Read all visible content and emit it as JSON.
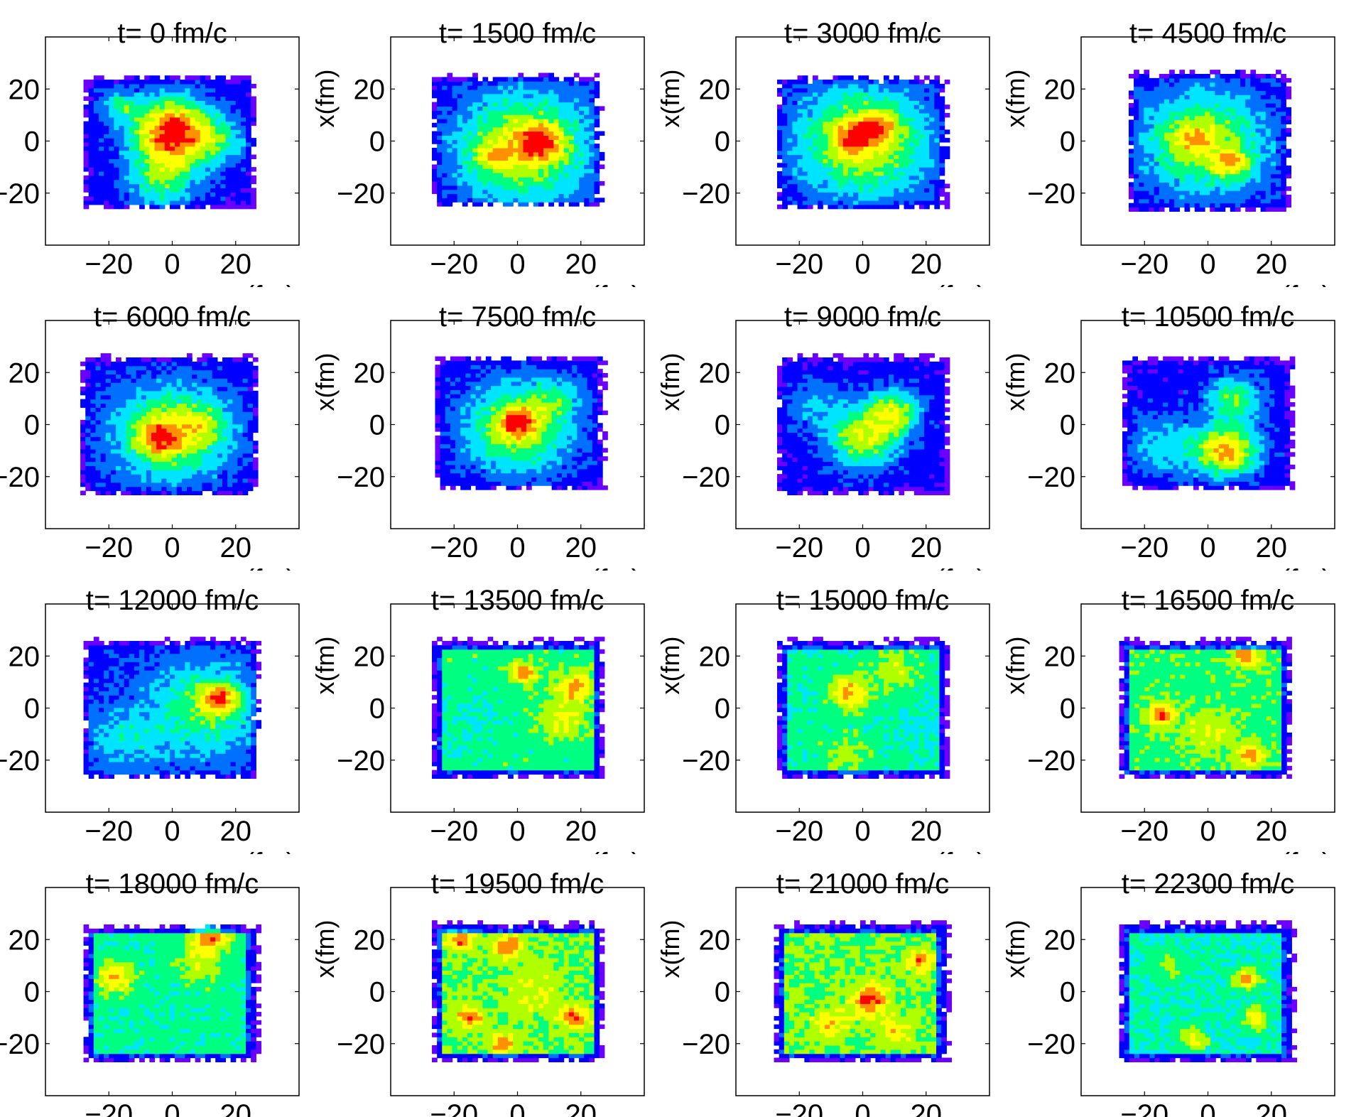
{
  "chart_data": {
    "type": "heatmap",
    "layout": {
      "rows": 4,
      "cols": 4
    },
    "xlabel": "z(fm)",
    "ylabel": "x(fm)",
    "xlim": [
      -40,
      40
    ],
    "ylim": [
      -40,
      40
    ],
    "xticks": [
      -20,
      0,
      20
    ],
    "yticks": [
      20,
      0,
      -20
    ],
    "tick_labels": {
      "x": [
        "−20",
        "0",
        "20"
      ],
      "y": [
        "20",
        "0",
        "−20"
      ]
    },
    "grid": false,
    "colormap": [
      "#6a00ff",
      "#0000ff",
      "#0070ff",
      "#00e5ff",
      "#00ff80",
      "#b0ff00",
      "#ffff00",
      "#ff9000",
      "#ff0000"
    ],
    "panels": [
      {
        "title": "t= 0 fm/c",
        "extent": {
          "x": [
            -28,
            26
          ],
          "y": [
            -26,
            25
          ]
        },
        "base": 0.15,
        "blobs": [
          [
            0,
            4,
            9,
            0.8
          ],
          [
            -3,
            -15,
            8,
            0.35
          ],
          [
            -17,
            14,
            4,
            0.3
          ],
          [
            15,
            0,
            6,
            0.25
          ]
        ]
      },
      {
        "title": "t= 1500 fm/c",
        "extent": {
          "x": [
            -27,
            26
          ],
          "y": [
            -25,
            25
          ]
        },
        "base": 0.15,
        "blobs": [
          [
            2,
            -2,
            15,
            0.55
          ],
          [
            7,
            0,
            5,
            0.35
          ],
          [
            -8,
            -6,
            4,
            0.2
          ]
        ]
      },
      {
        "title": "t= 3000 fm/c",
        "extent": {
          "x": [
            -27,
            26
          ],
          "y": [
            -26,
            24
          ]
        },
        "base": 0.15,
        "blobs": [
          [
            0,
            0,
            15,
            0.55
          ],
          [
            -3,
            2,
            4,
            0.3
          ],
          [
            5,
            6,
            4,
            0.3
          ]
        ]
      },
      {
        "title": "t= 4500 fm/c",
        "extent": {
          "x": [
            -25,
            26
          ],
          "y": [
            -27,
            26
          ]
        },
        "base": 0.15,
        "blobs": [
          [
            -1,
            0,
            14,
            0.5
          ],
          [
            8,
            -9,
            4,
            0.35
          ],
          [
            -5,
            1,
            4,
            0.2
          ]
        ]
      },
      {
        "title": "t= 6000 fm/c",
        "extent": {
          "x": [
            -29,
            27
          ],
          "y": [
            -27,
            26
          ]
        },
        "base": 0.15,
        "blobs": [
          [
            0,
            -3,
            13,
            0.5
          ],
          [
            -4,
            -5,
            5,
            0.35
          ],
          [
            10,
            0,
            5,
            0.2
          ]
        ]
      },
      {
        "title": "t= 7500 fm/c",
        "extent": {
          "x": [
            -26,
            27
          ],
          "y": [
            -25,
            26
          ]
        },
        "base": 0.15,
        "blobs": [
          [
            0,
            -1,
            12,
            0.5
          ],
          [
            0,
            1,
            4,
            0.35
          ],
          [
            12,
            10,
            6,
            0.2
          ]
        ]
      },
      {
        "title": "t= 9000 fm/c",
        "extent": {
          "x": [
            -27,
            27
          ],
          "y": [
            -27,
            26
          ]
        },
        "base": 0.15,
        "blobs": [
          [
            0,
            -5,
            8,
            0.5
          ],
          [
            10,
            5,
            6,
            0.45
          ],
          [
            -15,
            8,
            6,
            0.2
          ]
        ]
      },
      {
        "title": "t= 10500 fm/c",
        "extent": {
          "x": [
            -27,
            27
          ],
          "y": [
            -25,
            26
          ]
        },
        "base": 0.15,
        "blobs": [
          [
            6,
            -10,
            7,
            0.65
          ],
          [
            8,
            10,
            6,
            0.4
          ],
          [
            -14,
            -8,
            8,
            0.25
          ]
        ]
      },
      {
        "title": "t= 12000 fm/c",
        "extent": {
          "x": [
            -28,
            27
          ],
          "y": [
            -27,
            26
          ]
        },
        "base": 0.2,
        "blobs": [
          [
            10,
            0,
            12,
            0.35
          ],
          [
            15,
            4,
            4,
            0.45
          ],
          [
            -15,
            -12,
            8,
            0.2
          ]
        ]
      },
      {
        "title": "t= 13500 fm/c",
        "extent": {
          "x": [
            -27,
            27
          ],
          "y": [
            -27,
            26
          ]
        },
        "base": 0.5,
        "blobs": [
          [
            2,
            14,
            3,
            0.35
          ],
          [
            18,
            8,
            4,
            0.35
          ],
          [
            14,
            -4,
            5,
            0.2
          ],
          [
            -15,
            -5,
            7,
            -0.08
          ]
        ]
      },
      {
        "title": "t= 15000 fm/c",
        "extent": {
          "x": [
            -27,
            27
          ],
          "y": [
            -27,
            26
          ]
        },
        "base": 0.48,
        "blobs": [
          [
            -4,
            6,
            4,
            0.35
          ],
          [
            10,
            15,
            5,
            0.15
          ],
          [
            -5,
            -18,
            5,
            0.15
          ],
          [
            20,
            -8,
            6,
            -0.08
          ]
        ]
      },
      {
        "title": "t= 16500 fm/c",
        "extent": {
          "x": [
            -28,
            26
          ],
          "y": [
            -27,
            26
          ]
        },
        "base": 0.52,
        "blobs": [
          [
            -15,
            -2,
            3,
            0.4
          ],
          [
            12,
            20,
            3,
            0.35
          ],
          [
            13,
            -18,
            3,
            0.35
          ],
          [
            0,
            -8,
            6,
            0.15
          ]
        ]
      },
      {
        "title": "t= 18000 fm/c",
        "extent": {
          "x": [
            -28,
            27
          ],
          "y": [
            -27,
            25
          ]
        },
        "base": 0.48,
        "blobs": [
          [
            12,
            21,
            4,
            0.4
          ],
          [
            -18,
            5,
            4,
            0.3
          ],
          [
            8,
            10,
            5,
            0.15
          ]
        ]
      },
      {
        "title": "t= 19500 fm/c",
        "extent": {
          "x": [
            -27,
            27
          ],
          "y": [
            -27,
            26
          ]
        },
        "base": 0.55,
        "blobs": [
          [
            -18,
            20,
            3,
            0.35
          ],
          [
            -3,
            18,
            3,
            0.35
          ],
          [
            -15,
            -10,
            3,
            0.35
          ],
          [
            18,
            -10,
            3,
            0.35
          ],
          [
            -5,
            -20,
            3,
            0.3
          ],
          [
            5,
            0,
            8,
            0.1
          ]
        ]
      },
      {
        "title": "t= 21000 fm/c",
        "extent": {
          "x": [
            -28,
            27
          ],
          "y": [
            -27,
            26
          ]
        },
        "base": 0.55,
        "blobs": [
          [
            2,
            -3,
            4,
            0.4
          ],
          [
            18,
            12,
            3,
            0.3
          ],
          [
            -10,
            -12,
            4,
            0.2
          ],
          [
            10,
            -15,
            4,
            0.2
          ]
        ]
      },
      {
        "title": "t= 22300 fm/c",
        "extent": {
          "x": [
            -28,
            27
          ],
          "y": [
            -27,
            26
          ]
        },
        "base": 0.45,
        "blobs": [
          [
            12,
            5,
            3,
            0.35
          ],
          [
            15,
            -10,
            3,
            0.25
          ],
          [
            -5,
            -18,
            3,
            0.25
          ],
          [
            -12,
            10,
            5,
            0.1
          ]
        ]
      }
    ]
  }
}
